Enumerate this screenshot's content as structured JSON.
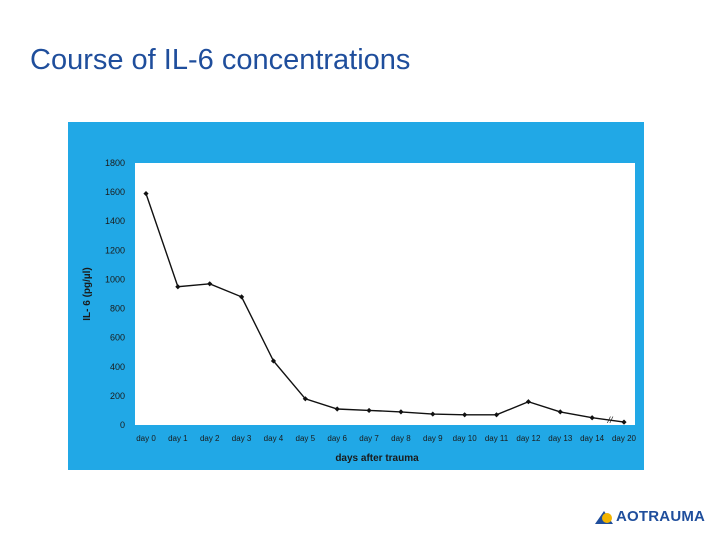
{
  "slide": {
    "title": "Course of IL-6 concentrations"
  },
  "logo": {
    "part1": "AO",
    "part2": "TRAUMA",
    "brand_color": "#1f4e9c",
    "accent_color": "#f2b400"
  },
  "colors": {
    "panel_background": "#21a8e6",
    "plot_background": "#ffffff",
    "line": "#111111"
  },
  "chart_data": {
    "type": "line",
    "title": "",
    "xlabel": "days after trauma",
    "ylabel": "IL- 6 (pg/µl)",
    "ylim": [
      0,
      1800
    ],
    "yticks": [
      0,
      200,
      400,
      600,
      800,
      1000,
      1200,
      1400,
      1600,
      1800
    ],
    "categories": [
      "day 0",
      "day 1",
      "day 2",
      "day 3",
      "day 4",
      "day 5",
      "day 6",
      "day 7",
      "day 8",
      "day 9",
      "day 10",
      "day 11",
      "day 12",
      "day 13",
      "day 14",
      "day 20"
    ],
    "series": [
      {
        "name": "IL-6",
        "values": [
          1590,
          950,
          970,
          880,
          440,
          180,
          110,
          100,
          90,
          75,
          70,
          70,
          160,
          90,
          50,
          20
        ]
      }
    ],
    "axis_break_marker": "//",
    "grid": false,
    "legend": "none"
  }
}
